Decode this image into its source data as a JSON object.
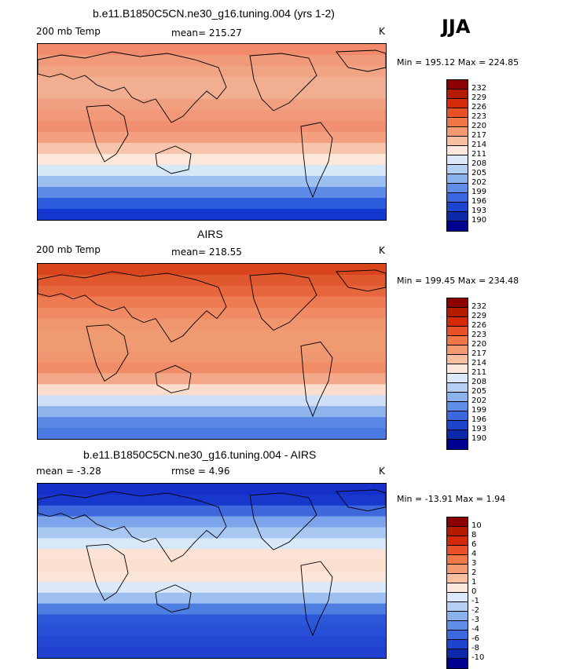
{
  "season": "JJA",
  "panels": [
    {
      "title": "b.e11.B1850C5CN.ne30_g16.tuning.004 (yrs 1-2)",
      "left_label": "200 mb Temp",
      "mid_label": "mean= 215.27",
      "units": "K",
      "minmax": "Min = 195.12 Max = 224.85",
      "legend": [
        "232",
        "229",
        "226",
        "223",
        "220",
        "217",
        "214",
        "211",
        "208",
        "205",
        "202",
        "199",
        "196",
        "193",
        "190"
      ],
      "bands": [
        "#f08a6a",
        "#f09a7a",
        "#f0a484",
        "#f2ae90",
        "#f2ae90",
        "#f0a080",
        "#f09878",
        "#f09070",
        "#f4a080",
        "#f7c4ac",
        "#fde6da",
        "#d6e8f8",
        "#9cc0ef",
        "#5d8be6",
        "#2c5bdd",
        "#1438cf"
      ]
    },
    {
      "title": "AIRS",
      "left_label": "200 mb Temp",
      "mid_label": "mean= 218.55",
      "units": "K",
      "minmax": "Min = 199.45 Max = 234.48",
      "legend": [
        "232",
        "229",
        "226",
        "223",
        "220",
        "217",
        "214",
        "211",
        "208",
        "205",
        "202",
        "199",
        "196",
        "193",
        "190"
      ],
      "bands": [
        "#d8441c",
        "#e0582e",
        "#e8663e",
        "#ee7a52",
        "#f08a62",
        "#f0966e",
        "#f09a72",
        "#f09a72",
        "#f09670",
        "#f08c66",
        "#f4a88a",
        "#fcdccc",
        "#cfe0f6",
        "#8fb4ec",
        "#5a88e4",
        "#4a7ae2"
      ]
    },
    {
      "title": "b.e11.B1850C5CN.ne30_g16.tuning.004 - AIRS",
      "left_label": "mean =   -3.28",
      "mid_label": "rmse =    4.96",
      "units": "K",
      "minmax": "Min = -13.91 Max =    1.94",
      "legend": [
        "10",
        "8",
        "6",
        "4",
        "3",
        "2",
        "1",
        "0",
        "-1",
        "-2",
        "-3",
        "-4",
        "-6",
        "-8",
        "-10"
      ],
      "bands": [
        "#1430c8",
        "#1838cc",
        "#3e68dc",
        "#7ca4ea",
        "#a8c8f2",
        "#d8e8f8",
        "#fbe2d4",
        "#fbe0d0",
        "#fbe4d8",
        "#dce9f8",
        "#9ec0f0",
        "#4f7ee2",
        "#2a58d8",
        "#2850d6",
        "#2448d4",
        "#2040d0"
      ]
    }
  ],
  "colorbar_colors": [
    "#8b0000",
    "#b31a00",
    "#d42a0a",
    "#e8502a",
    "#f07848",
    "#f49a70",
    "#f8c0a0",
    "#fce8dc",
    "#dce9fa",
    "#b6d0f4",
    "#8cb2ee",
    "#5e8ee6",
    "#3a68de",
    "#1c44cc",
    "#0c2aa8",
    "#000090"
  ]
}
